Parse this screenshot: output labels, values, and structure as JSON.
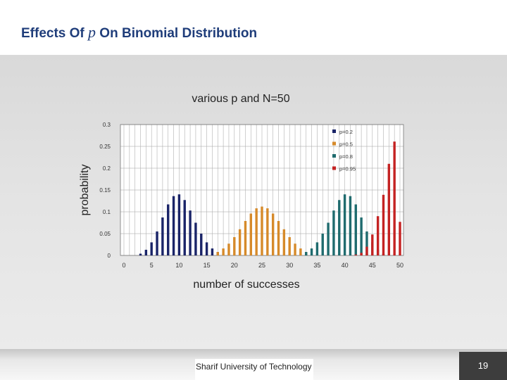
{
  "slide": {
    "title_prefix": "Effects Of ",
    "title_var": "p",
    "title_suffix": " On Binomial Distribution",
    "footer": "Sharif University of Technology",
    "page_number": "19"
  },
  "colors": {
    "title": "#1f3d7a",
    "p02": "#1a2468",
    "p05": "#d68a2a",
    "p08": "#1f6b6e",
    "p095": "#c42222"
  },
  "chart_data": {
    "type": "bar",
    "title": "various p and N=50",
    "xlabel": "number of successes",
    "ylabel": "probability",
    "xlim": [
      0,
      50
    ],
    "ylim": [
      0,
      0.3
    ],
    "x_ticks": [
      "0",
      "5",
      "10",
      "15",
      "20",
      "25",
      "30",
      "35",
      "40",
      "45",
      "50"
    ],
    "y_ticks": [
      "0",
      "0.05",
      "0.1",
      "0.15",
      "0.2",
      "0.25",
      "0.3"
    ],
    "grid": true,
    "legend_position": "top-right",
    "series": [
      {
        "name": "p=0.2",
        "color": "#1a2468",
        "x": [
          3,
          4,
          5,
          6,
          7,
          8,
          9,
          10,
          11,
          12,
          13,
          14,
          15,
          16,
          17
        ],
        "values": [
          0.004,
          0.013,
          0.03,
          0.055,
          0.087,
          0.117,
          0.136,
          0.14,
          0.127,
          0.103,
          0.075,
          0.05,
          0.03,
          0.016,
          0.008
        ]
      },
      {
        "name": "p=0.5",
        "color": "#d68a2a",
        "x": [
          17,
          18,
          19,
          20,
          21,
          22,
          23,
          24,
          25,
          26,
          27,
          28,
          29,
          30,
          31,
          32,
          33
        ],
        "values": [
          0.008,
          0.016,
          0.027,
          0.042,
          0.06,
          0.079,
          0.096,
          0.108,
          0.112,
          0.108,
          0.096,
          0.079,
          0.06,
          0.042,
          0.027,
          0.016,
          0.008
        ]
      },
      {
        "name": "p=0.8",
        "color": "#1f6b6e",
        "x": [
          33,
          34,
          35,
          36,
          37,
          38,
          39,
          40,
          41,
          42,
          43,
          44,
          45,
          46,
          47
        ],
        "values": [
          0.008,
          0.016,
          0.03,
          0.05,
          0.075,
          0.103,
          0.127,
          0.14,
          0.136,
          0.117,
          0.087,
          0.055,
          0.03,
          0.013,
          0.004
        ]
      },
      {
        "name": "p=0.95",
        "color": "#c42222",
        "x": [
          42,
          43,
          44,
          45,
          46,
          47,
          48,
          49,
          50
        ],
        "values": [
          0.002,
          0.006,
          0.02,
          0.048,
          0.09,
          0.139,
          0.21,
          0.261,
          0.077
        ]
      }
    ]
  }
}
